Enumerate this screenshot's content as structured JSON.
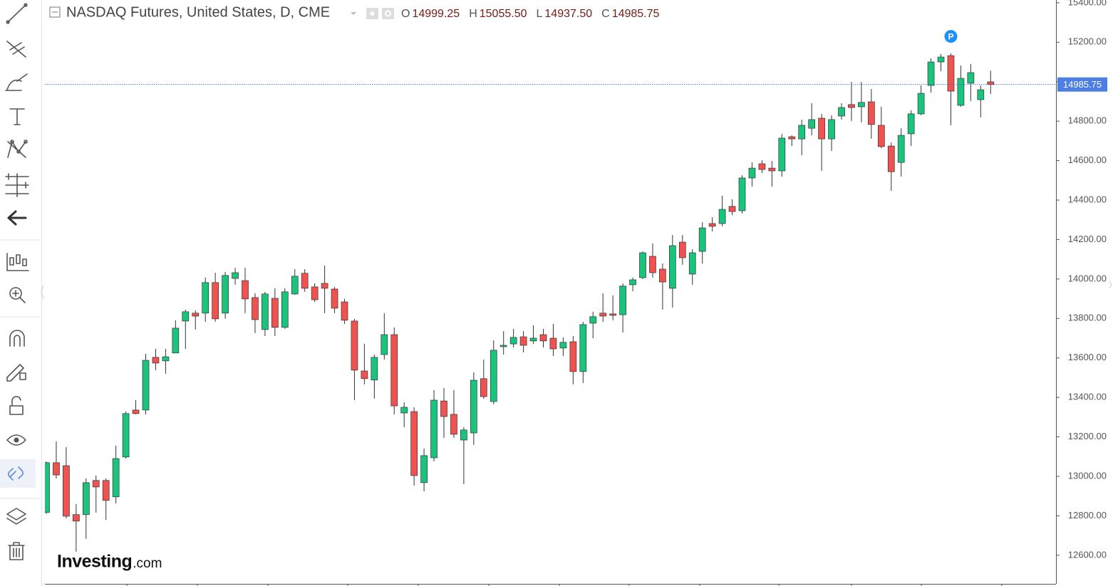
{
  "chart_data": {
    "type": "candlestick",
    "title": "NASDAQ Futures, United States, D, CME",
    "up_color": "#1bc47d",
    "down_color": "#f0524f",
    "open": [
      12817,
      13069,
      13054,
      12806,
      12806,
      12979,
      12979,
      12896,
      13098,
      13336,
      13336,
      13603,
      13585,
      13625,
      13787,
      13827,
      13827,
      13982,
      13827,
      14003,
      13992,
      13906,
      13744,
      13902,
      13755,
      13924,
      14029,
      13960,
      13978,
      13949,
      13884,
      13787,
      13534,
      13488,
      13617,
      13718,
      13321,
      13328,
      12968,
      13094,
      13382,
      13314,
      13184,
      13220,
      13495,
      13379,
      13657,
      13671,
      13707,
      13686,
      13718,
      13700,
      13650,
      13682,
      13531,
      13776,
      13827,
      13823,
      13819,
      13971,
      14007,
      14115,
      14050,
      13953,
      14187,
      14025,
      14140,
      14281,
      14281,
      14368,
      14346,
      14512,
      14584,
      14562,
      14548,
      14721,
      14710,
      14764,
      14815,
      14710,
      14826,
      14884,
      14873,
      14898,
      14779,
      14674,
      14591,
      14736,
      14837,
      14981,
      15100,
      15132,
      14880,
      14992,
      14909,
      14999.25
    ],
    "high": [
      13075,
      13177,
      13148,
      12860,
      12990,
      13004,
      12990,
      13155,
      13329,
      13386,
      13621,
      13646,
      13646,
      13791,
      13845,
      13841,
      14007,
      14032,
      14036,
      14057,
      14057,
      13928,
      13935,
      13953,
      13953,
      14050,
      14050,
      13978,
      14068,
      13960,
      13899,
      13798,
      13672,
      13617,
      13827,
      13754,
      13375,
      13350,
      13141,
      13437,
      13448,
      13437,
      13249,
      13527,
      13592,
      13689,
      13736,
      13747,
      13736,
      13765,
      13747,
      13773,
      13704,
      13711,
      13783,
      13834,
      13928,
      13917,
      13978,
      14007,
      14140,
      14180,
      14079,
      14223,
      14223,
      14151,
      14288,
      14313,
      14422,
      14404,
      14526,
      14591,
      14602,
      14598,
      14735,
      14728,
      14808,
      14891,
      14837,
      14830,
      14891,
      14999,
      14999,
      14963,
      14873,
      14692,
      14764,
      14855,
      14981,
      15118,
      15140,
      15143,
      15082,
      15089,
      14981,
      15055.5
    ],
    "low": [
      12810,
      12989,
      12787,
      12618,
      12683,
      12816,
      12780,
      12863,
      13090,
      13314,
      13314,
      13538,
      13520,
      13625,
      13646,
      13744,
      13783,
      13783,
      13798,
      13971,
      13827,
      13726,
      13711,
      13711,
      13747,
      13920,
      13935,
      13884,
      13827,
      13827,
      13773,
      13386,
      13466,
      13394,
      13592,
      13314,
      13249,
      12953,
      12924,
      13076,
      13195,
      13195,
      12960,
      13159,
      13393,
      13365,
      13617,
      13653,
      13628,
      13671,
      13653,
      13610,
      13610,
      13466,
      13473,
      13700,
      13783,
      13791,
      13729,
      13938,
      13999,
      14007,
      13845,
      13855,
      14072,
      13971,
      14079,
      14241,
      14267,
      14324,
      14332,
      14469,
      14537,
      14469,
      14519,
      14674,
      14627,
      14728,
      14548,
      14649,
      14808,
      14801,
      14794,
      14711,
      14663,
      14447,
      14519,
      14674,
      14830,
      14945,
      15053,
      14779,
      14873,
      14902,
      14819,
      14937.5
    ],
    "close": [
      13069,
      13007,
      12798,
      12773,
      12968,
      12946,
      12878,
      13090,
      13318,
      13318,
      13588,
      13574,
      13606,
      13751,
      13834,
      13812,
      13982,
      13798,
      14018,
      14032,
      13899,
      13794,
      13924,
      13755,
      13935,
      14014,
      13953,
      13895,
      13953,
      13852,
      13791,
      13538,
      13495,
      13603,
      13718,
      13357,
      13350,
      13004,
      13105,
      13386,
      13303,
      13213,
      13235,
      13487,
      13404,
      13639,
      13664,
      13704,
      13664,
      13700,
      13686,
      13646,
      13679,
      13531,
      13769,
      13809,
      13812,
      13816,
      13964,
      13996,
      14133,
      14032,
      13985,
      14169,
      14108,
      14133,
      14259,
      14267,
      14353,
      14342,
      14512,
      14562,
      14555,
      14548,
      14714,
      14710,
      14779,
      14808,
      14710,
      14808,
      14869,
      14869,
      14895,
      14783,
      14671,
      14544,
      14728,
      14837,
      14941,
      15100,
      15125,
      14952,
      15017,
      15046,
      14959,
      14985.75
    ],
    "ohlc_legend": [
      {
        "key": "O",
        "label": "14999.25"
      },
      {
        "key": "H",
        "label": "15055.50"
      },
      {
        "key": "L",
        "label": "14937.50"
      },
      {
        "key": "C",
        "label": "14985.75"
      }
    ],
    "last_price_label": "14985.75",
    "marker": {
      "text": "P",
      "index": 91
    },
    "ylim": [
      12455,
      15414
    ],
    "yticks": [
      {
        "value": 12600,
        "label": "12600.00"
      },
      {
        "value": 12800,
        "label": "12800.00"
      },
      {
        "value": 13000,
        "label": "13000.00"
      },
      {
        "value": 13200,
        "label": "13200.00"
      },
      {
        "value": 13400,
        "label": "13400.00"
      },
      {
        "value": 13600,
        "label": "13600.00"
      },
      {
        "value": 13800,
        "label": "13800.00"
      },
      {
        "value": 14000,
        "label": "14000.00"
      },
      {
        "value": 14200,
        "label": "14200.00"
      },
      {
        "value": 14400,
        "label": "14400.00"
      },
      {
        "value": 14600,
        "label": "14600.00"
      },
      {
        "value": 14800,
        "label": "14800.00"
      },
      {
        "value": 15000,
        "label": "15000.00"
      },
      {
        "value": 15200,
        "label": "15200.00"
      },
      {
        "value": 15400,
        "label": "15400.00"
      }
    ],
    "logo": {
      "brand": "Investing",
      "suffix": ".com"
    }
  }
}
